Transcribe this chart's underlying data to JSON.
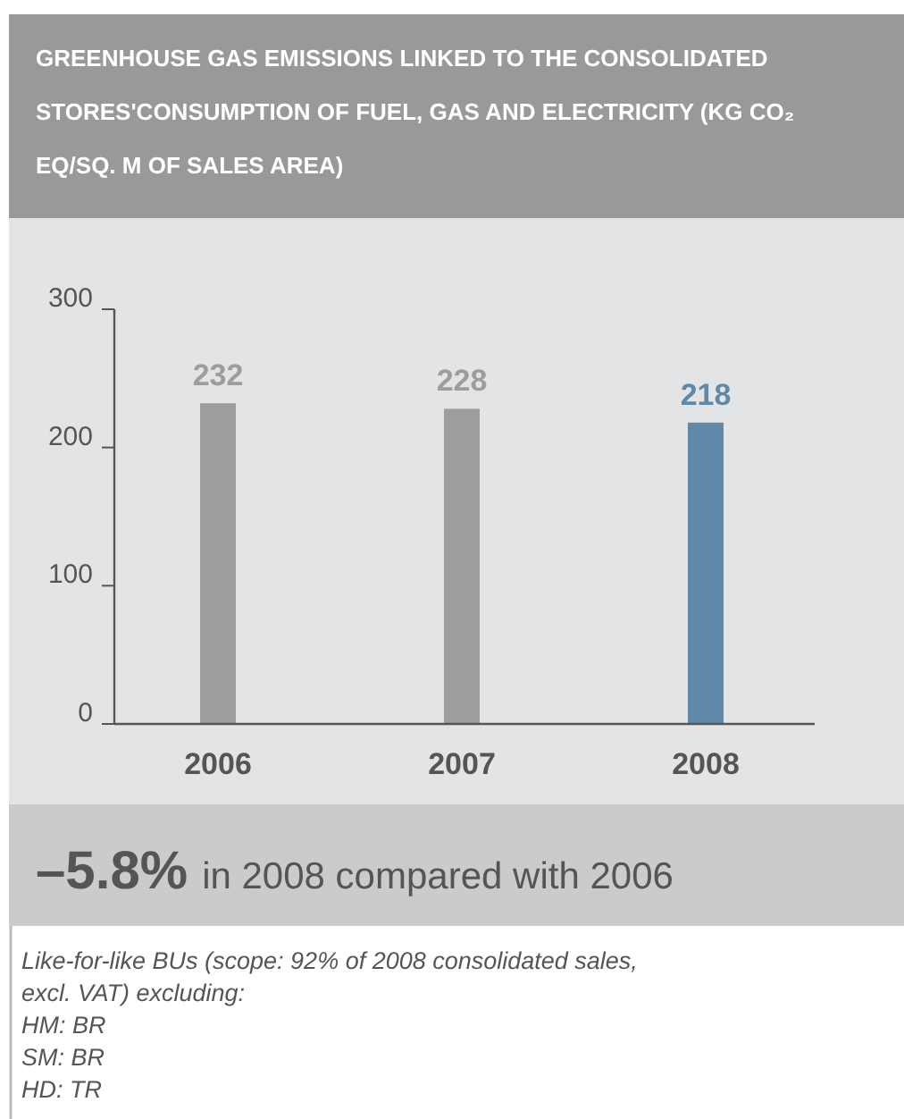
{
  "chart_data": {
    "type": "bar",
    "title": "GREENHOUSE GAS EMISSIONS LINKED TO THE CONSOLIDATED STORES'CONSUMPTION OF FUEL, GAS AND ELECTRICITY (KG CO₂ EQ/SQ. M OF SALES AREA)",
    "categories": [
      "2006",
      "2007",
      "2008"
    ],
    "values": [
      232,
      228,
      218
    ],
    "colors": [
      "#9d9d9e",
      "#9d9d9e",
      "#6088a8"
    ],
    "ylim": [
      0,
      300
    ],
    "yticks": [
      0,
      100,
      200,
      300
    ],
    "data_labels": true,
    "annotations": [
      "–5.8%",
      "in 2008 compared with 2006",
      "Like-for-like BUs (scope: 92% of 2008 consolidated sales, excl. VAT) excluding:",
      "HM: BR",
      "SM: BR",
      "HD: TR"
    ]
  }
}
